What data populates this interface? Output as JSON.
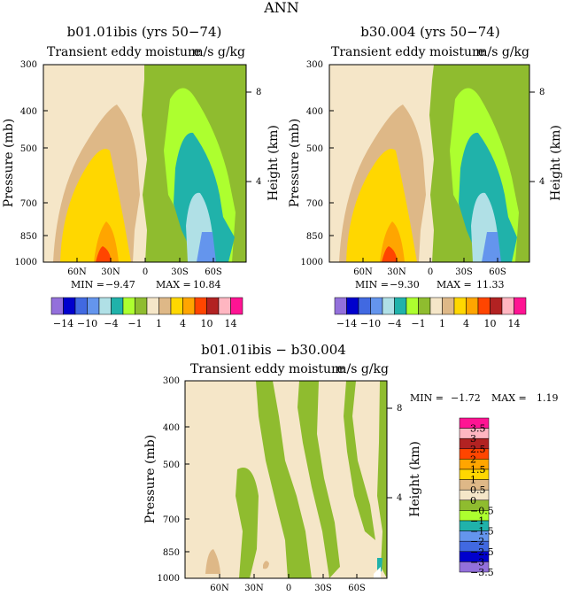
{
  "figure": {
    "supertitle": "ANN"
  },
  "panels": [
    {
      "id": "p1",
      "title": "b01.01ibis (yrs 50−74)",
      "subtitle_left": "Transient eddy moisture",
      "subtitle_right": "m/s g/kg",
      "stats": {
        "min_label": "MIN =",
        "min": "−9.47",
        "max_label": "MAX =",
        "max": "10.84"
      },
      "ylabel": "Pressure (mb)",
      "y2label": "Height (km)",
      "y_ticks": [
        "300",
        "400",
        "500",
        "700",
        "850",
        "1000"
      ],
      "y2_ticks": [
        "8",
        "4"
      ],
      "x_ticks": [
        "60N",
        "30N",
        "0",
        "30S",
        "60S"
      ]
    },
    {
      "id": "p2",
      "title": "b30.004 (yrs 50−74)",
      "subtitle_left": "Transient eddy moisture",
      "subtitle_right": "m/s g/kg",
      "stats": {
        "min_label": "MIN =",
        "min": "−9.30",
        "max_label": "MAX =",
        "max": "11.33"
      },
      "ylabel": "Pressure (mb)",
      "y2label": "Height (km)",
      "y_ticks": [
        "300",
        "400",
        "500",
        "700",
        "850",
        "1000"
      ],
      "y2_ticks": [
        "8",
        "4"
      ],
      "x_ticks": [
        "60N",
        "30N",
        "0",
        "30S",
        "60S"
      ]
    },
    {
      "id": "p3",
      "title": "b01.01ibis − b30.004",
      "subtitle_left": "Transient eddy moisture",
      "subtitle_right": "m/s g/kg",
      "stats": {
        "min_label": "MIN =",
        "min": "−1.72",
        "max_label": "MAX =",
        "max": "1.19"
      },
      "ylabel": "Pressure (mb)",
      "y2label": "Height (km)",
      "y_ticks": [
        "300",
        "400",
        "500",
        "700",
        "850",
        "1000"
      ],
      "y2_ticks": [
        "8",
        "4"
      ],
      "x_ticks": [
        "60N",
        "30N",
        "0",
        "30S",
        "60S"
      ]
    }
  ],
  "legend_top": {
    "colors": [
      "#9370db",
      "#0000cd",
      "#4169e1",
      "#6495ed",
      "#b0e0e6",
      "#20b2aa",
      "#adff2f",
      "#8fbc2f",
      "#f5e6c8",
      "#deb887",
      "#ffd700",
      "#ffa500",
      "#ff4500",
      "#b22222",
      "#ffb6c1",
      "#ff1493"
    ],
    "labels": [
      "−14",
      "−10",
      "−4",
      "−1",
      "1",
      "4",
      "10",
      "14"
    ]
  },
  "legend_diff": {
    "colors": [
      "#ff1493",
      "#ffb6c1",
      "#b22222",
      "#ff4500",
      "#ffa500",
      "#ffd700",
      "#deb887",
      "#f5e6c8",
      "#8fbc2f",
      "#adff2f",
      "#20b2aa",
      "#6495ed",
      "#4169e1",
      "#0000cd",
      "#9370db"
    ],
    "labels": [
      "3.5",
      "3",
      "2.5",
      "2",
      "1.5",
      "1",
      "0.5",
      "0",
      "−0.5",
      "−1",
      "−1.5",
      "−2",
      "−2.5",
      "−3",
      "−3.5"
    ]
  },
  "chart_data": [
    {
      "type": "heatmap",
      "title": "b01.01ibis (yrs 50−74)",
      "xlabel": "",
      "ylabel": "Pressure (mb)",
      "y2label": "Height (km)",
      "x_ticks": [
        "60N",
        "30N",
        "0",
        "30S",
        "60S"
      ],
      "y_ticks": [
        300,
        400,
        500,
        700,
        850,
        1000
      ],
      "y_scale": "log",
      "y_range": [
        1000,
        300
      ],
      "contour_levels": [
        -14,
        -12,
        -10,
        -8,
        -4,
        -2,
        -1,
        0,
        1,
        2,
        4,
        8,
        10,
        12,
        14
      ],
      "min": -9.47,
      "max": 10.84,
      "units": "m/s g/kg"
    },
    {
      "type": "heatmap",
      "title": "b30.004 (yrs 50−74)",
      "xlabel": "",
      "ylabel": "Pressure (mb)",
      "y2label": "Height (km)",
      "x_ticks": [
        "60N",
        "30N",
        "0",
        "30S",
        "60S"
      ],
      "y_ticks": [
        300,
        400,
        500,
        700,
        850,
        1000
      ],
      "y_scale": "log",
      "y_range": [
        1000,
        300
      ],
      "contour_levels": [
        -14,
        -12,
        -10,
        -8,
        -4,
        -2,
        -1,
        0,
        1,
        2,
        4,
        8,
        10,
        12,
        14
      ],
      "min": -9.3,
      "max": 11.33,
      "units": "m/s g/kg"
    },
    {
      "type": "heatmap",
      "title": "b01.01ibis − b30.004",
      "xlabel": "",
      "ylabel": "Pressure (mb)",
      "y2label": "Height (km)",
      "x_ticks": [
        "60N",
        "30N",
        "0",
        "30S",
        "60S"
      ],
      "y_ticks": [
        300,
        400,
        500,
        700,
        850,
        1000
      ],
      "y_scale": "log",
      "y_range": [
        1000,
        300
      ],
      "contour_levels": [
        -3.5,
        -3,
        -2.5,
        -2,
        -1.5,
        -1,
        -0.5,
        0,
        0.5,
        1,
        1.5,
        2,
        2.5,
        3,
        3.5
      ],
      "min": -1.72,
      "max": 1.19,
      "units": "m/s g/kg"
    }
  ]
}
